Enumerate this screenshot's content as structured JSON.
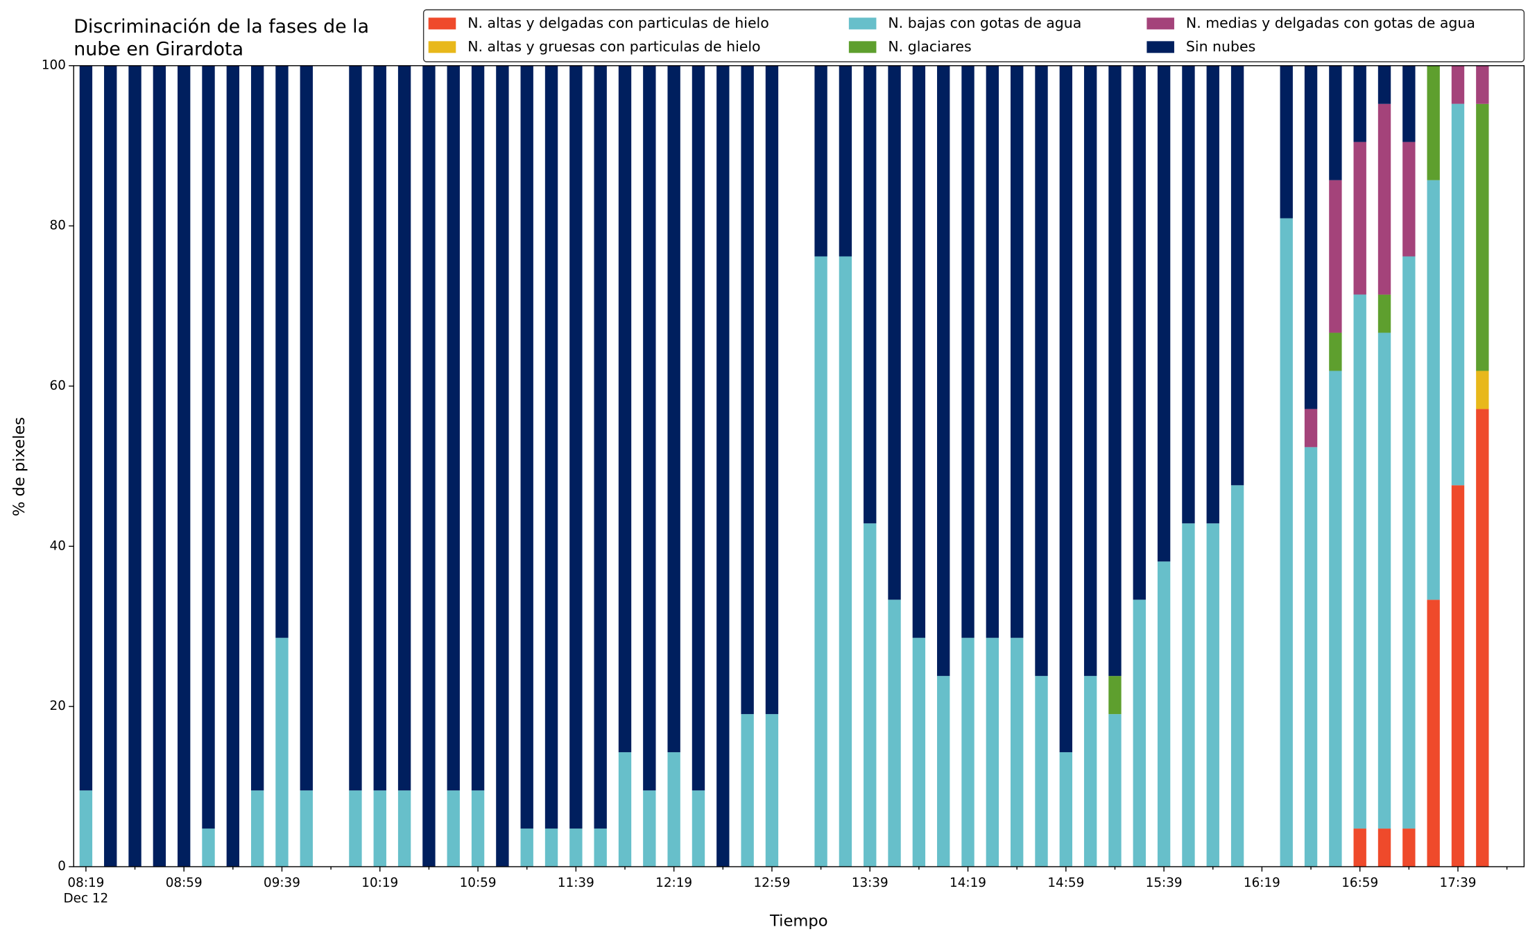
{
  "chart_data": {
    "type": "bar",
    "stacked": true,
    "title": [
      "Discriminación de la fases de la",
      "nube en Girardota"
    ],
    "xlabel": "Tiempo",
    "ylabel": "% de pixeles",
    "x_date": "Dec 12",
    "x": [
      "08:19",
      "08:29",
      "08:39",
      "08:49",
      "08:59",
      "09:09",
      "09:19",
      "09:29",
      "09:39",
      "09:49",
      "10:09",
      "10:19",
      "10:29",
      "10:39",
      "10:49",
      "10:59",
      "11:09",
      "11:19",
      "11:29",
      "11:39",
      "11:49",
      "11:59",
      "12:09",
      "12:19",
      "12:29",
      "12:39",
      "12:49",
      "12:59",
      "13:19",
      "13:29",
      "13:39",
      "13:49",
      "13:59",
      "14:09",
      "14:19",
      "14:29",
      "14:39",
      "14:49",
      "14:59",
      "15:09",
      "15:19",
      "15:29",
      "15:39",
      "15:49",
      "15:59",
      "16:09",
      "16:29",
      "16:39",
      "16:49",
      "16:59",
      "17:09",
      "17:19",
      "17:29",
      "17:39",
      "17:49"
    ],
    "series": [
      {
        "name": "N. altas y delgadas con particulas de hielo",
        "color": "#ef4a2b",
        "values": [
          0,
          0,
          0,
          0,
          0,
          0,
          0,
          0,
          0,
          0,
          0,
          0,
          0,
          0,
          0,
          0,
          0,
          0,
          0,
          0,
          0,
          0,
          0,
          0,
          0,
          0,
          0,
          0,
          0,
          0,
          0,
          0,
          0,
          0,
          0,
          0,
          0,
          0,
          0,
          0,
          0,
          0,
          0,
          0,
          0,
          0,
          0,
          0,
          0,
          4.76,
          4.76,
          4.76,
          33.33,
          47.62,
          57.14
        ]
      },
      {
        "name": "N. altas y gruesas con particulas de hielo",
        "color": "#e8b81b",
        "values": [
          0,
          0,
          0,
          0,
          0,
          0,
          0,
          0,
          0,
          0,
          0,
          0,
          0,
          0,
          0,
          0,
          0,
          0,
          0,
          0,
          0,
          0,
          0,
          0,
          0,
          0,
          0,
          0,
          0,
          0,
          0,
          0,
          0,
          0,
          0,
          0,
          0,
          0,
          0,
          0,
          0,
          0,
          0,
          0,
          0,
          0,
          0,
          0,
          0,
          0,
          0,
          0,
          0,
          0,
          4.76
        ]
      },
      {
        "name": "N. bajas con gotas de agua",
        "color": "#67bfca",
        "values": [
          9.52,
          0,
          0,
          0,
          0,
          4.76,
          0,
          9.52,
          28.57,
          9.52,
          9.52,
          9.52,
          9.52,
          0,
          9.52,
          9.52,
          0,
          4.76,
          4.76,
          4.76,
          4.76,
          14.29,
          9.52,
          14.29,
          9.52,
          0,
          19.05,
          19.05,
          76.19,
          76.19,
          42.86,
          33.33,
          28.57,
          23.81,
          28.57,
          28.57,
          28.57,
          23.81,
          14.29,
          23.81,
          19.05,
          33.33,
          38.1,
          42.86,
          42.86,
          47.62,
          80.95,
          52.38,
          61.9,
          66.67,
          61.9,
          71.43,
          52.38,
          47.62,
          0
        ]
      },
      {
        "name": "N. glaciares",
        "color": "#5e9f2e",
        "values": [
          0,
          0,
          0,
          0,
          0,
          0,
          0,
          0,
          0,
          0,
          0,
          0,
          0,
          0,
          0,
          0,
          0,
          0,
          0,
          0,
          0,
          0,
          0,
          0,
          0,
          0,
          0,
          0,
          0,
          0,
          0,
          0,
          0,
          0,
          0,
          0,
          0,
          0,
          0,
          0,
          4.76,
          0,
          0,
          0,
          0,
          0,
          0,
          0,
          4.76,
          0,
          4.76,
          0,
          14.29,
          0,
          33.33
        ]
      },
      {
        "name": "N. medias y delgadas con gotas de agua",
        "color": "#a4437a",
        "values": [
          0,
          0,
          0,
          0,
          0,
          0,
          0,
          0,
          0,
          0,
          0,
          0,
          0,
          0,
          0,
          0,
          0,
          0,
          0,
          0,
          0,
          0,
          0,
          0,
          0,
          0,
          0,
          0,
          0,
          0,
          0,
          0,
          0,
          0,
          0,
          0,
          0,
          0,
          0,
          0,
          0,
          0,
          0,
          0,
          0,
          0,
          0,
          4.76,
          19.05,
          19.05,
          23.81,
          14.29,
          0,
          4.76,
          4.76
        ]
      },
      {
        "name": "Sin nubes",
        "color": "#001f5e",
        "values": [
          90.48,
          100,
          100,
          100,
          100,
          95.24,
          100,
          90.48,
          71.43,
          90.48,
          90.48,
          90.48,
          90.48,
          100,
          90.48,
          90.48,
          100,
          95.24,
          95.24,
          95.24,
          95.24,
          85.71,
          90.48,
          85.71,
          90.48,
          100,
          80.95,
          80.95,
          23.81,
          23.81,
          57.14,
          66.67,
          71.43,
          76.19,
          71.43,
          71.43,
          71.43,
          76.19,
          85.71,
          76.19,
          76.19,
          66.67,
          61.9,
          57.14,
          57.14,
          52.38,
          19.05,
          42.86,
          14.29,
          9.52,
          4.76,
          9.52,
          0,
          0,
          0
        ]
      }
    ],
    "xlim": [
      "08:14",
      "18:06"
    ],
    "xticks": [
      "08:19",
      "08:59",
      "09:39",
      "10:19",
      "10:59",
      "11:39",
      "12:19",
      "12:59",
      "13:39",
      "14:19",
      "14:59",
      "15:39",
      "16:19",
      "16:59",
      "17:39"
    ],
    "x_minor_ticks": [
      "08:39",
      "09:19",
      "09:59",
      "10:39",
      "11:19",
      "11:59",
      "12:39",
      "13:19",
      "13:59",
      "14:39",
      "15:19",
      "15:59",
      "16:39",
      "17:19",
      "17:59"
    ],
    "ylim": [
      0,
      100
    ],
    "yticks": [
      0,
      20,
      40,
      60,
      80,
      100
    ],
    "grid": false,
    "legend": "upper right"
  }
}
